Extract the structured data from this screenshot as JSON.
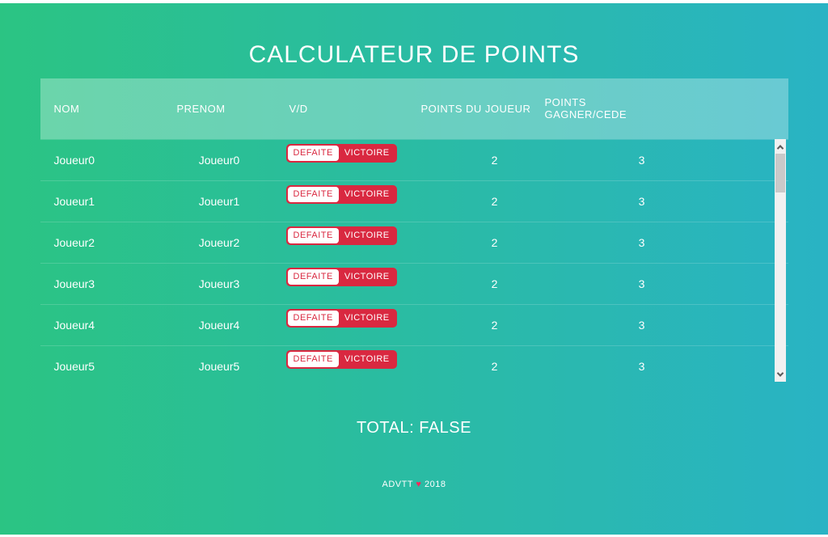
{
  "title": "CALCULATEUR DE POINTS",
  "table": {
    "headers": [
      "NOM",
      "PRENOM",
      "V/D",
      "POINTS DU JOUEUR",
      "POINTS GAGNER/CEDE"
    ],
    "button_labels": {
      "defaite": "DEFAITE",
      "victoire": "VICTOIRE"
    },
    "rows": [
      {
        "nom": "Joueur0",
        "prenom": "Joueur0",
        "points_du_joueur": "2",
        "points_gagner_cede": "3"
      },
      {
        "nom": "Joueur1",
        "prenom": "Joueur1",
        "points_du_joueur": "2",
        "points_gagner_cede": "3"
      },
      {
        "nom": "Joueur2",
        "prenom": "Joueur2",
        "points_du_joueur": "2",
        "points_gagner_cede": "3"
      },
      {
        "nom": "Joueur3",
        "prenom": "Joueur3",
        "points_du_joueur": "2",
        "points_gagner_cede": "3"
      },
      {
        "nom": "Joueur4",
        "prenom": "Joueur4",
        "points_du_joueur": "2",
        "points_gagner_cede": "3"
      },
      {
        "nom": "Joueur5",
        "prenom": "Joueur5",
        "points_du_joueur": "2",
        "points_gagner_cede": "3"
      }
    ]
  },
  "total": "TOTAL: FALSE",
  "footer": {
    "brand": "ADVTT",
    "heart": "♥",
    "year": "2018"
  },
  "colors": {
    "gradient_left": "#2bc483",
    "gradient_right": "#29b3c4",
    "accent_red": "#d92840",
    "heart_pink": "#ee2b5b",
    "header_overlay": "rgba(255,255,255,0.30)"
  }
}
